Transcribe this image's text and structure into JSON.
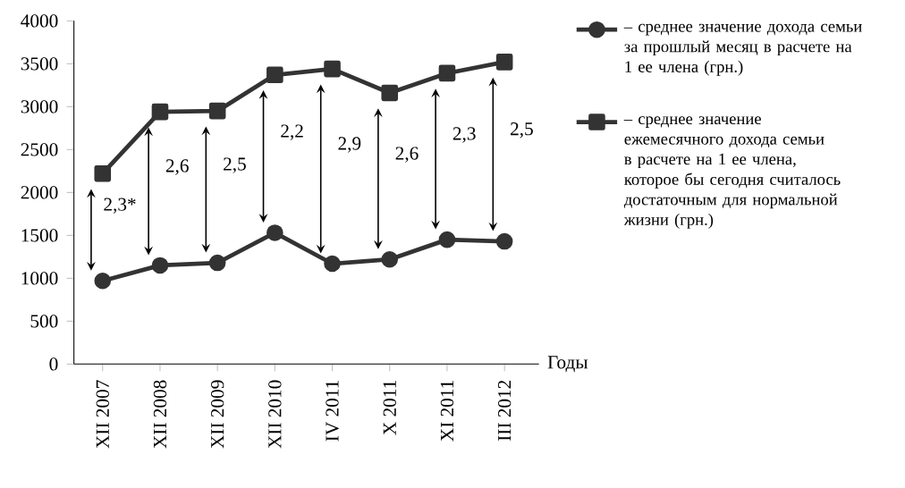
{
  "chart_data": {
    "type": "line",
    "categories": [
      "XII 2007",
      "XII 2008",
      "XII 2009",
      "XII 2010",
      "IV 2011",
      "X 2011",
      "XI 2011",
      "III 2012"
    ],
    "xlabel": "Годы",
    "ylim": [
      0,
      4000
    ],
    "yticks": [
      0,
      500,
      1000,
      1500,
      2000,
      2500,
      3000,
      3500,
      4000
    ],
    "series": [
      {
        "name": "– среднее значение дохода семьи за прошлый месяц в расчете на 1 ее члена (грн.)",
        "color": "#333333",
        "marker": "circle",
        "values": [
          970,
          1150,
          1180,
          1530,
          1170,
          1220,
          1450,
          1430
        ]
      },
      {
        "name": "– среднее значение ежемесячного дохода семьи в расчете на 1 ее члена, которое бы сегодня считалось достаточным для нормальной жизни (грн.)",
        "color": "#333333",
        "marker": "square",
        "values": [
          2220,
          2940,
          2950,
          3370,
          3440,
          3160,
          3390,
          3520
        ]
      }
    ],
    "annotations": [
      "2,3*",
      "2,6",
      "2,5",
      "2,2",
      "2,9",
      "2,6",
      "2,3",
      "2,5"
    ],
    "legend": "right",
    "grid": false,
    "line_style": "solid"
  }
}
